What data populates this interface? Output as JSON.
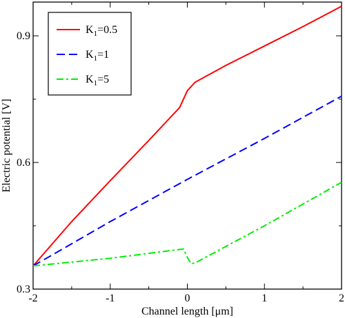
{
  "chart_data": {
    "type": "line",
    "title": "",
    "xlabel": "Channel length [μm]",
    "ylabel": "Electric potential [V]",
    "xlim": [
      -2,
      2
    ],
    "ylim": [
      0.3,
      0.98
    ],
    "x_ticks": [
      -2,
      -1,
      0,
      1,
      2
    ],
    "x_tick_labels": [
      "-2",
      "-1",
      "0",
      "1",
      "2"
    ],
    "y_ticks": [
      0.3,
      0.6,
      0.9
    ],
    "y_tick_labels": [
      "0.3",
      "0.6",
      "0.9"
    ],
    "grid": false,
    "legend_position": "top-left",
    "series": [
      {
        "name_main": "K",
        "name_sub": "1",
        "name_rest": "=0.5",
        "color": "#ff0000",
        "style": "solid",
        "x": [
          -2,
          -1.5,
          -1,
          -0.5,
          -0.1,
          0,
          0.1,
          0.5,
          1,
          1.5,
          2
        ],
        "y": [
          0.355,
          0.46,
          0.557,
          0.652,
          0.73,
          0.77,
          0.79,
          0.83,
          0.876,
          0.922,
          0.97
        ]
      },
      {
        "name_main": "K",
        "name_sub": "1",
        "name_rest": "=1",
        "color": "#0000ff",
        "style": "dashed",
        "x": [
          -2,
          -1,
          0,
          1,
          2
        ],
        "y": [
          0.355,
          0.46,
          0.56,
          0.657,
          0.757
        ]
      },
      {
        "name_main": "K",
        "name_sub": "1",
        "name_rest": "=5",
        "color": "#00ee00",
        "style": "dashdot",
        "x": [
          -2,
          -1,
          -0.05,
          0,
          0.05,
          0.1,
          1,
          2
        ],
        "y": [
          0.355,
          0.373,
          0.395,
          0.375,
          0.36,
          0.362,
          0.45,
          0.553
        ]
      }
    ]
  }
}
